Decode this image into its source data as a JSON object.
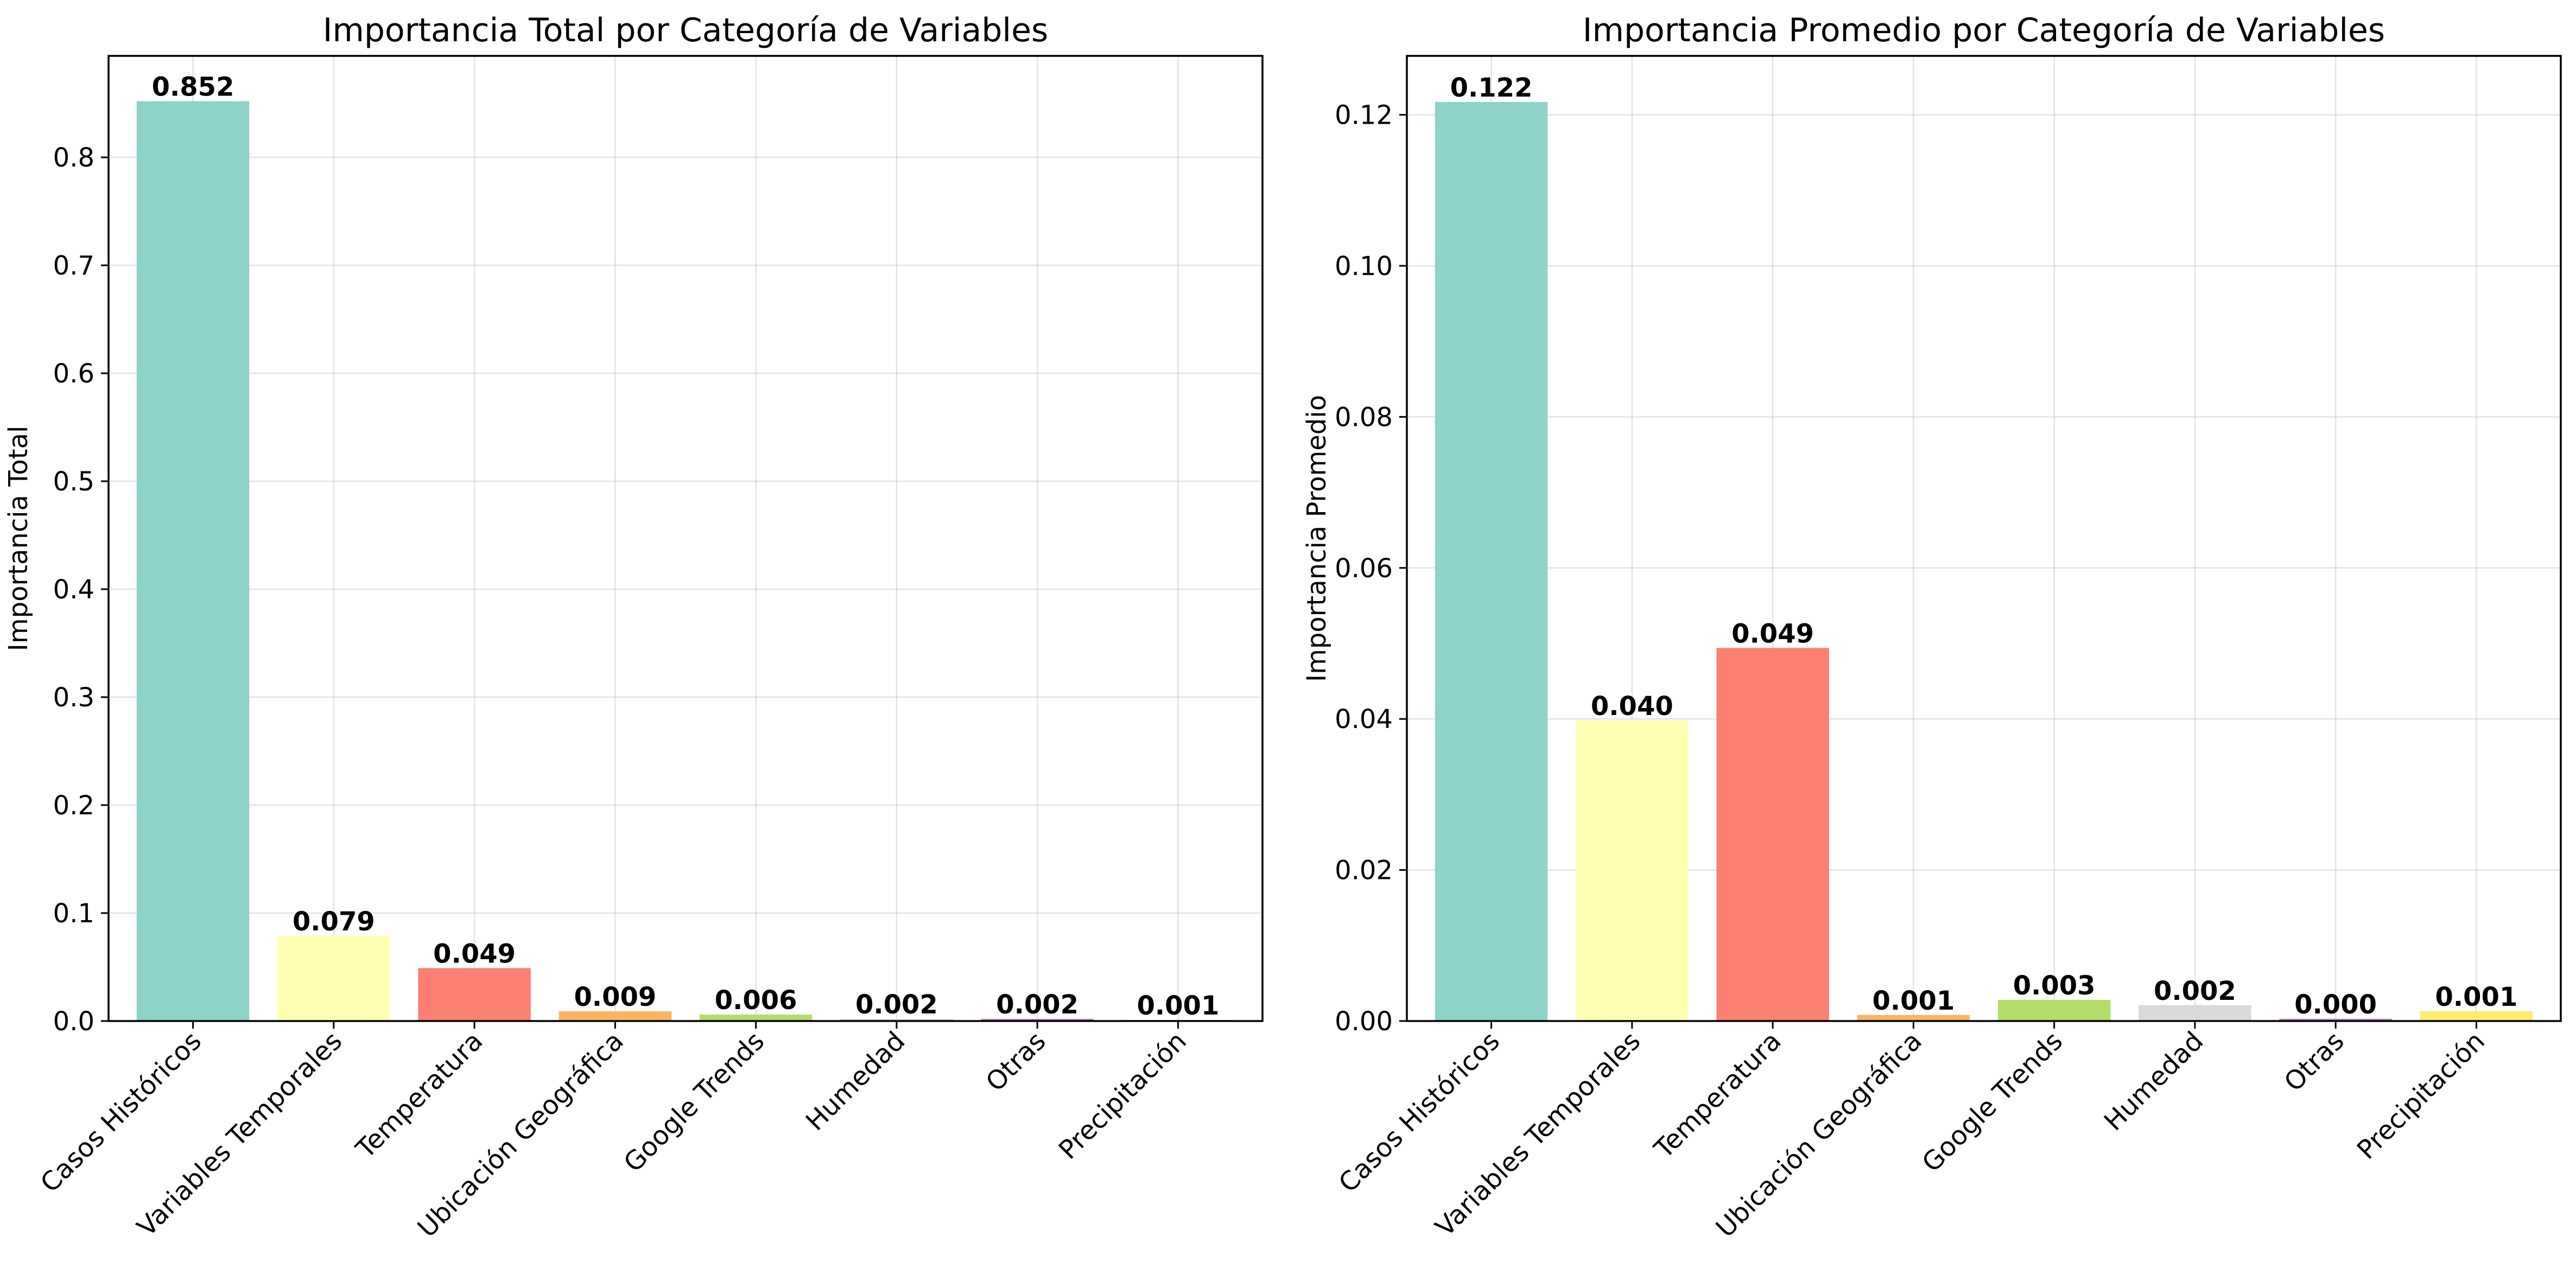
{
  "chart_data": [
    {
      "type": "bar",
      "title": "Importancia Total por Categoría de Variables",
      "xlabel": "",
      "ylabel": "Importancia Total",
      "categories": [
        "Casos Históricos",
        "Variables Temporales",
        "Temperatura",
        "Ubicación Geográfica",
        "Google Trends",
        "Humedad",
        "Otras",
        "Precipitación"
      ],
      "values": [
        0.852,
        0.079,
        0.049,
        0.009,
        0.006,
        0.002,
        0.002,
        0.001
      ],
      "value_labels": [
        "0.852",
        "0.079",
        "0.049",
        "0.009",
        "0.006",
        "0.002",
        "0.002",
        "0.001"
      ],
      "colors": [
        "#8dd3c7",
        "#ffffb3",
        "#fb8072",
        "#fdb462",
        "#b3de69",
        "#d9d9d9",
        "#bc80bd",
        "#ffed6f"
      ],
      "ylim": [
        0,
        0.894
      ],
      "yticks": [
        0.0,
        0.1,
        0.2,
        0.3,
        0.4,
        0.5,
        0.6,
        0.7,
        0.8
      ],
      "ytick_labels": [
        "0.0",
        "0.1",
        "0.2",
        "0.3",
        "0.4",
        "0.5",
        "0.6",
        "0.7",
        "0.8"
      ],
      "grid": true
    },
    {
      "type": "bar",
      "title": "Importancia Promedio por Categoría de Variables",
      "xlabel": "",
      "ylabel": "Importancia Promedio",
      "categories": [
        "Casos Históricos",
        "Variables Temporales",
        "Temperatura",
        "Ubicación Geográfica",
        "Google Trends",
        "Humedad",
        "Otras",
        "Precipitación"
      ],
      "values": [
        0.1217,
        0.0398,
        0.0494,
        0.0008,
        0.0028,
        0.0021,
        0.0003,
        0.0013
      ],
      "value_labels": [
        "0.122",
        "0.040",
        "0.049",
        "0.001",
        "0.003",
        "0.002",
        "0.000",
        "0.001"
      ],
      "colors": [
        "#8dd3c7",
        "#ffffb3",
        "#fb8072",
        "#fdb462",
        "#b3de69",
        "#d9d9d9",
        "#bc80bd",
        "#ffed6f"
      ],
      "ylim": [
        0,
        0.1278
      ],
      "yticks": [
        0.0,
        0.02,
        0.04,
        0.06,
        0.08,
        0.1,
        0.12
      ],
      "ytick_labels": [
        "0.00",
        "0.02",
        "0.04",
        "0.06",
        "0.08",
        "0.10",
        "0.12"
      ],
      "grid": true
    }
  ]
}
